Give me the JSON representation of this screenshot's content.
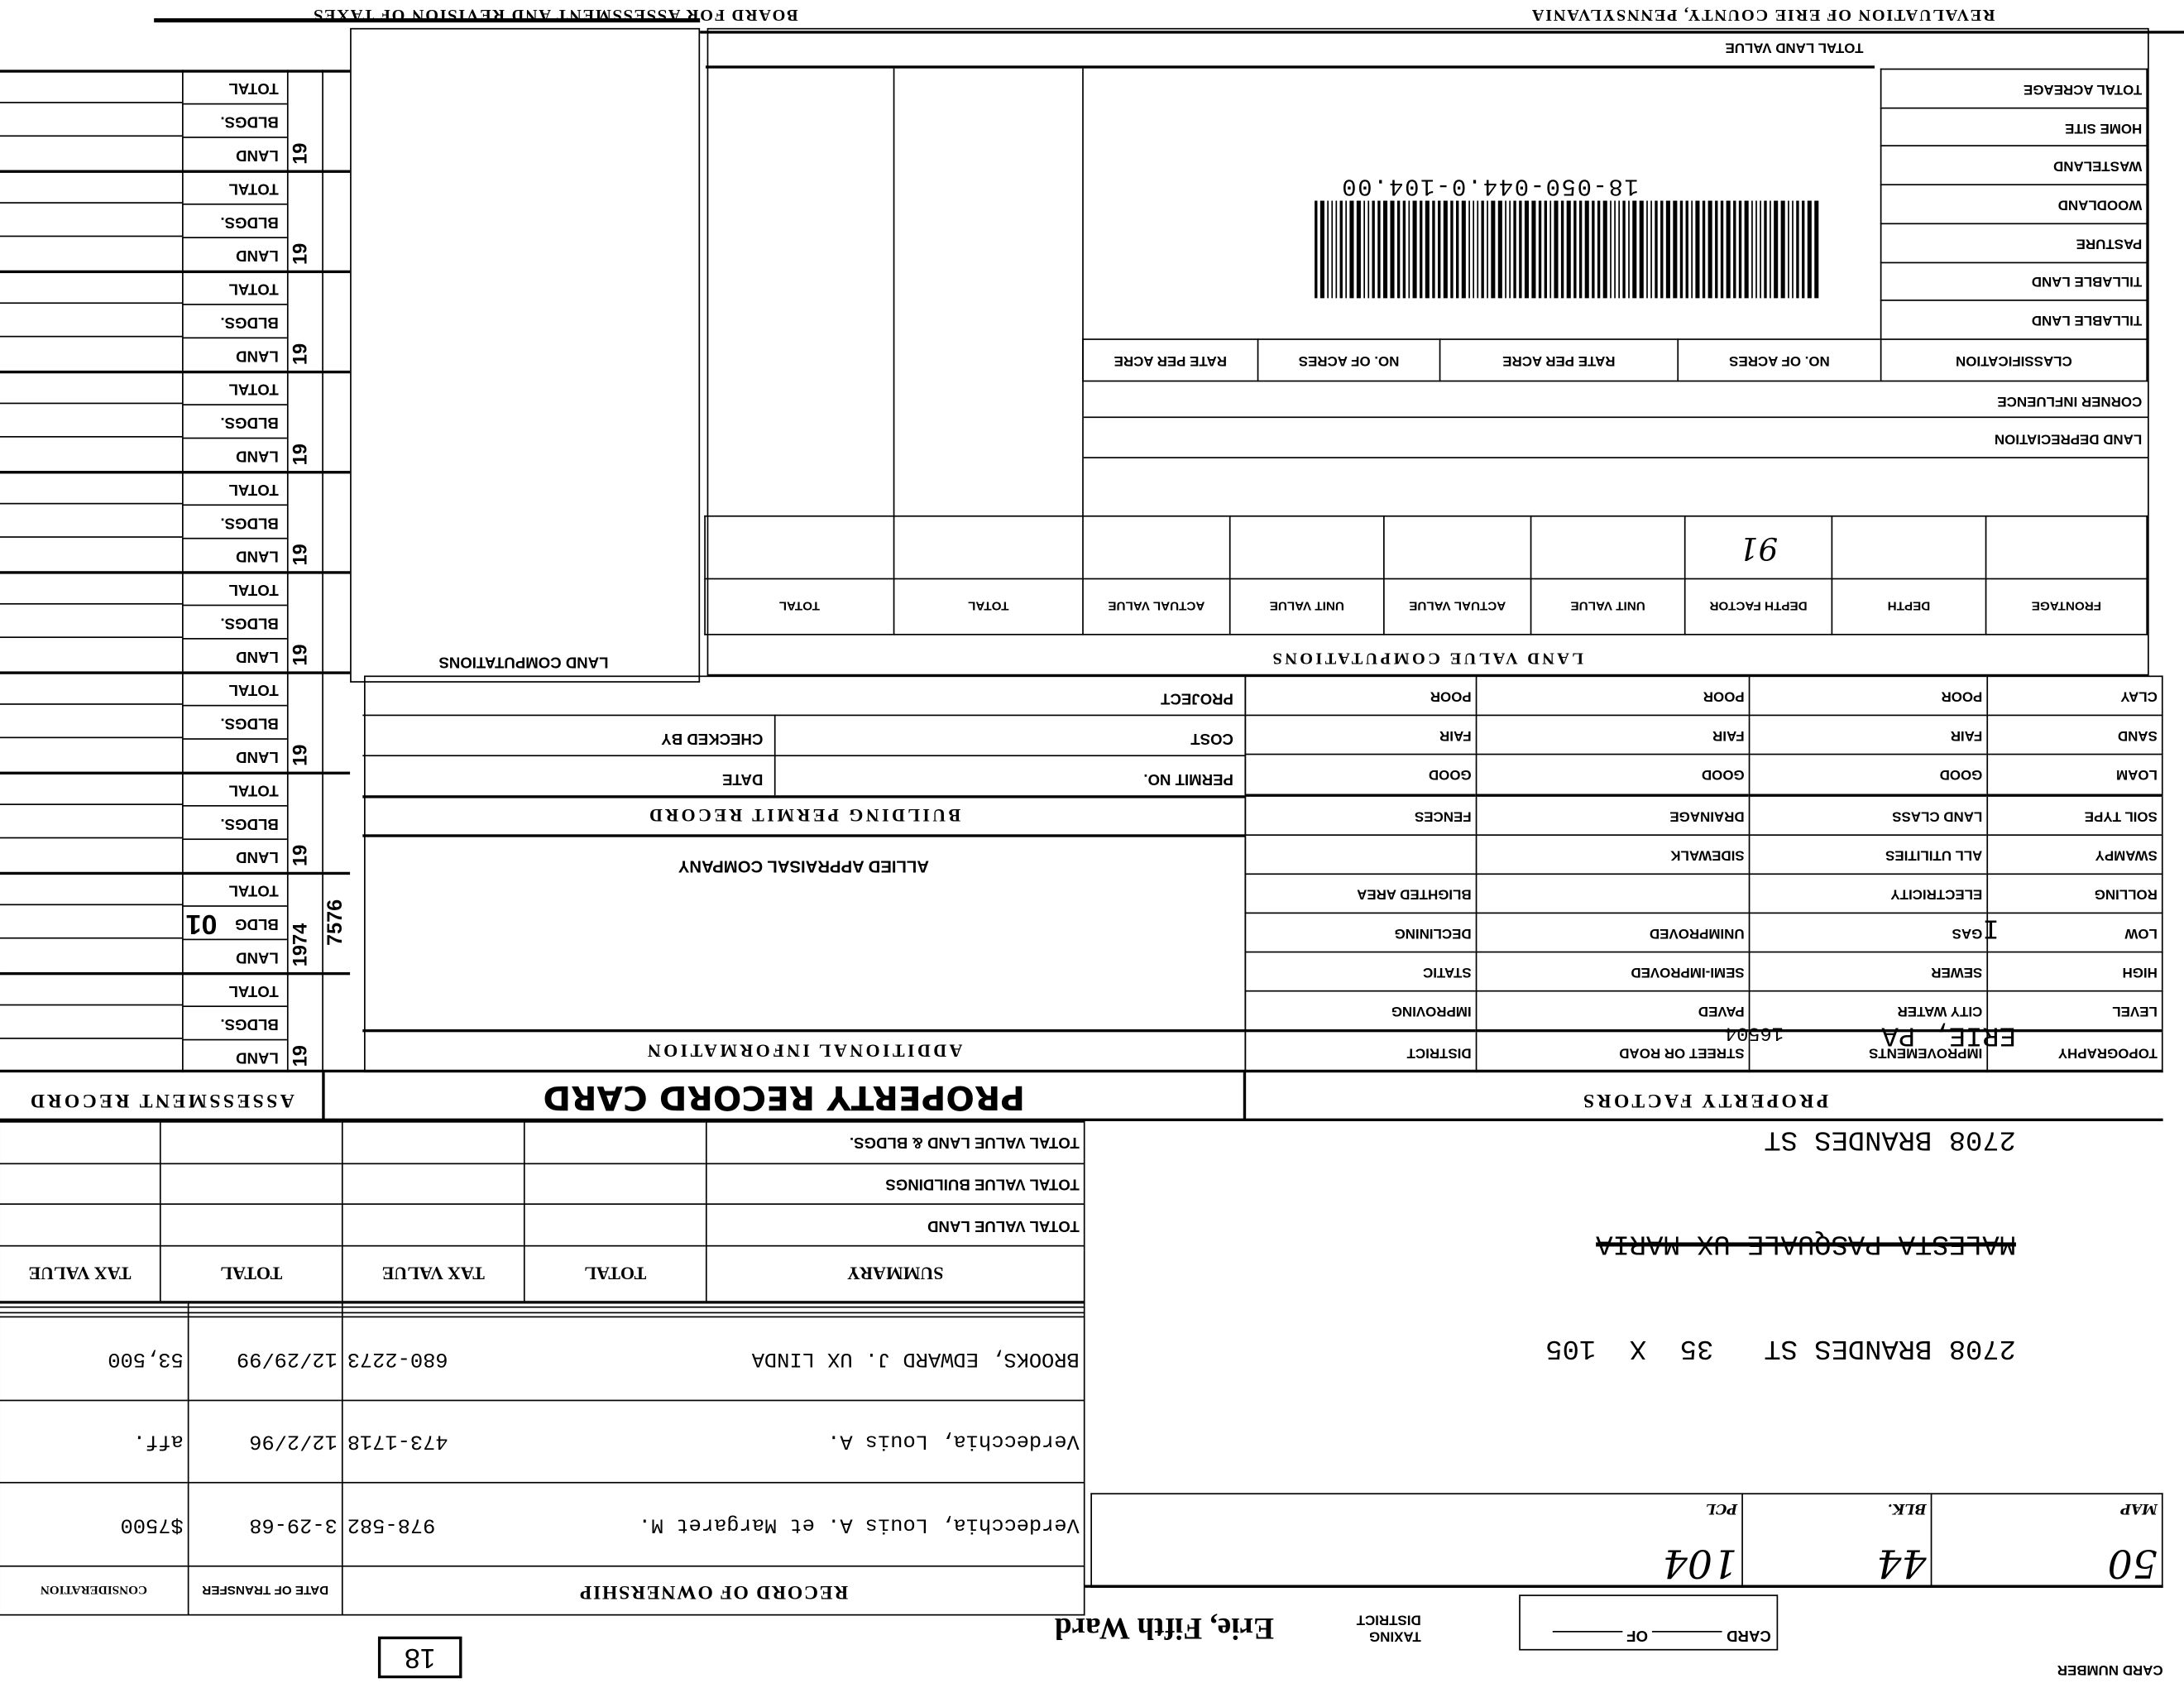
{
  "header": {
    "title_left": "REVALUATION OF ERIE COUNTY, PENNSYLVANIA",
    "title_right": "BOARD FOR ASSESSMENT AND REVISION OF TAXES"
  },
  "card": {
    "card_number_label": "CARD NUMBER",
    "card_label": "CARD",
    "of_label": "OF",
    "taxing_district_label": "TAXING DISTRICT",
    "taxing_district": "Erie, Fifth Ward",
    "box_number": "18"
  },
  "parcel": {
    "map_label": "MAP",
    "map": "50",
    "blk_label": "BLK.",
    "blk": "44",
    "pcl_label": "PCL",
    "pcl": "104"
  },
  "address": {
    "line1": "2708 BRANDES ST   35  X  105",
    "struck": "MALESTA PASQUALE UX MARIA",
    "line2": "2708 BRANDES ST",
    "line3": "ERIE, PA",
    "zip": "16504",
    "line4": "I"
  },
  "ownership": {
    "title": "RECORD OF OWNERSHIP",
    "date_label": "DATE OF TRANSFER",
    "consideration_label": "CONSIDERATION",
    "rows": [
      {
        "owner": "Verdecchia, Louis A. et Margaret M.",
        "deed": "978-582",
        "date": "3-29-68",
        "consideration": "$7500"
      },
      {
        "owner": "Verdecchia, Louis A.",
        "deed": "473-1718",
        "date": "12/2/96",
        "consideration": "aff."
      },
      {
        "owner": "BROOKS, EDWARD J. UX LINDA",
        "deed": "680-2273",
        "date": "12/29/99",
        "consideration": "53,500"
      },
      {
        "owner": "",
        "deed": "",
        "date": "",
        "consideration": ""
      },
      {
        "owner": "",
        "deed": "",
        "date": "",
        "consideration": ""
      },
      {
        "owner": "",
        "deed": "",
        "date": "",
        "consideration": ""
      }
    ]
  },
  "summary": {
    "headers": [
      "SUMMARY",
      "TOTAL",
      "TAX VALUE",
      "TOTAL",
      "TAX VALUE"
    ],
    "rows": [
      "TOTAL VALUE LAND",
      "TOTAL VALUE BUILDINGS",
      "TOTAL VALUE LAND & BLDGS."
    ]
  },
  "sections": {
    "property_factors": "PROPERTY FACTORS",
    "property_record_card": "PROPERTY RECORD CARD",
    "assessment_record": "ASSESSMENT RECORD"
  },
  "property_factors": {
    "rows": [
      [
        "TOPOGRAPHY",
        "IMPROVEMENTS",
        "STREET OR ROAD",
        "DISTRICT"
      ],
      [
        "LEVEL",
        "CITY WATER",
        "PAVED",
        "IMPROVING"
      ],
      [
        "HIGH",
        "SEWER",
        "SEMI-IMPROVED",
        "STATIC"
      ],
      [
        "LOW",
        "GAS",
        "UNIMPROVED",
        "DECLINING"
      ],
      [
        "ROLLING",
        "ELECTRICITY",
        "",
        "BLIGHTED AREA"
      ],
      [
        "SWAMPY",
        "ALL UTILITIES",
        "SIDEWALK",
        ""
      ],
      [
        "SOIL TYPE",
        "LAND CLASS",
        "DRAINAGE",
        "FENCES"
      ],
      [
        "LOAM",
        "GOOD",
        "GOOD",
        "GOOD"
      ],
      [
        "SAND",
        "FAIR",
        "FAIR",
        "FAIR"
      ],
      [
        "CLAY",
        "POOR",
        "POOR",
        "POOR"
      ]
    ]
  },
  "building_permit": {
    "additional_info": "ADDITIONAL INFORMATION",
    "company": "ALLIED APPRAISAL COMPANY",
    "title": "BUILDING PERMIT RECORD",
    "permit_no": "PERMIT NO.",
    "date": "DATE",
    "cost": "COST",
    "checked_by": "CHECKED BY",
    "project": "PROJECT"
  },
  "land_value": {
    "title": "LAND VALUE COMPUTATIONS",
    "headers": [
      "FRONTAGE",
      "DEPTH",
      "DEPTH FACTOR",
      "UNIT VALUE",
      "ACTUAL VALUE",
      "UNIT VALUE",
      "ACTUAL VALUE",
      "TOTAL",
      "TOTAL"
    ],
    "depth_factor_value": "91",
    "land_depreciation": "LAND DEPRECIATION",
    "corner_influence": "CORNER INFLUENCE",
    "classification_headers": [
      "CLASSIFICATION",
      "NO. OF ACRES",
      "RATE PER ACRE",
      "NO. OF ACRES",
      "RATE PER ACRE"
    ],
    "classes": [
      "TILLABLE LAND",
      "TILLABLE LAND",
      "PASTURE",
      "WOODLAND",
      "WASTELAND",
      "HOME SITE",
      "TOTAL ACREAGE"
    ],
    "total_land_value": "TOTAL LAND VALUE",
    "parcel_id": "18-050-044.0-104.00"
  },
  "land_computations": {
    "title": "LAND COMPUTATIONS"
  },
  "assessment": {
    "labels": [
      "LAND",
      "BLDGS.",
      "TOTAL"
    ],
    "groups": [
      {
        "year": "19",
        "side": "",
        "mark": "",
        "bldg": "BLDGS."
      },
      {
        "year": "1974",
        "side": "7576",
        "mark": "01",
        "bldg": "BLDG"
      },
      {
        "year": "19",
        "side": "",
        "mark": "",
        "bldg": "BLDGS."
      },
      {
        "year": "19",
        "side": "",
        "mark": "",
        "bldg": "BLDGS."
      },
      {
        "year": "19",
        "side": "",
        "mark": "",
        "bldg": "BLDGS."
      },
      {
        "year": "19",
        "side": "",
        "mark": "",
        "bldg": "BLDGS."
      },
      {
        "year": "19",
        "side": "",
        "mark": "",
        "bldg": "BLDGS."
      },
      {
        "year": "19",
        "side": "",
        "mark": "",
        "bldg": "BLDGS."
      },
      {
        "year": "19",
        "side": "",
        "mark": "",
        "bldg": "BLDGS."
      },
      {
        "year": "19",
        "side": "",
        "mark": "",
        "bldg": "BLDGS."
      }
    ]
  }
}
